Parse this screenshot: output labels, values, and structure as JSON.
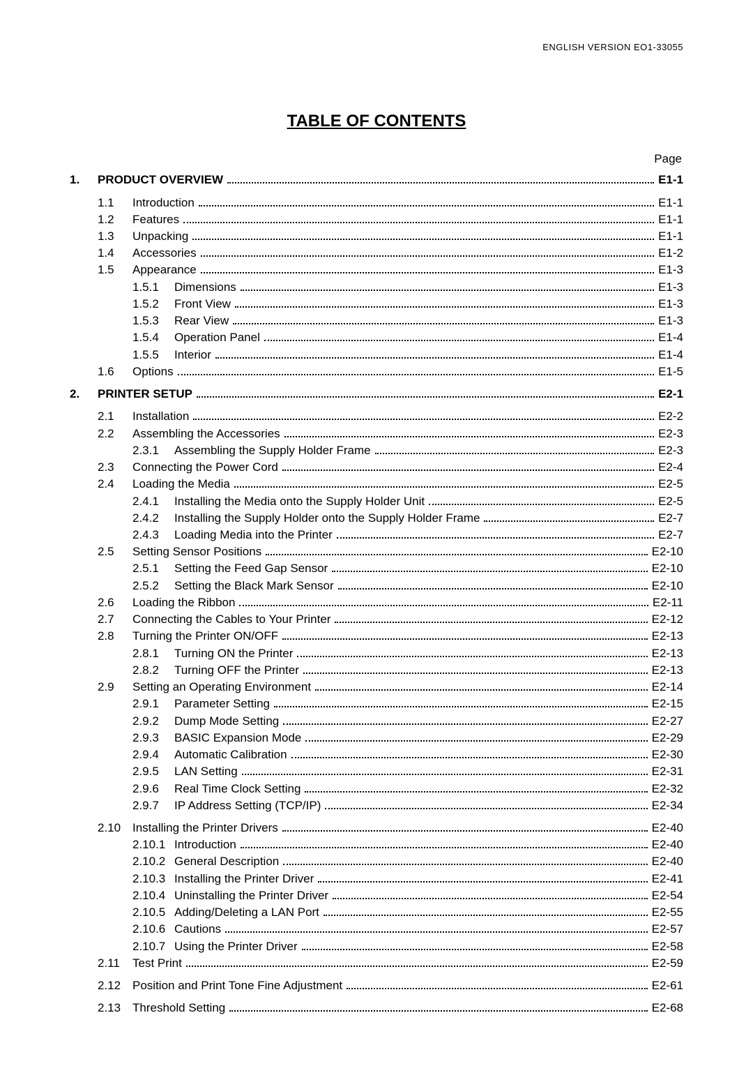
{
  "doc_id": "ENGLISH VERSION EO1-33055",
  "title": "TABLE OF CONTENTS",
  "page_label": "Page",
  "toc": [
    {
      "level": "chapter",
      "num": "1.",
      "label": "PRODUCT OVERVIEW",
      "page": "E1-1",
      "gap": true
    },
    {
      "level": "section",
      "num": "1.1",
      "label": "Introduction",
      "page": "E1-1",
      "gap": true
    },
    {
      "level": "section",
      "num": "1.2",
      "label": "Features",
      "page": "E1-1"
    },
    {
      "level": "section",
      "num": "1.3",
      "label": "Unpacking",
      "page": "E1-1"
    },
    {
      "level": "section",
      "num": "1.4",
      "label": "Accessories",
      "page": "E1-2"
    },
    {
      "level": "section",
      "num": "1.5",
      "label": "Appearance",
      "page": "E1-3"
    },
    {
      "level": "sub",
      "num": "1.5.1",
      "label": "Dimensions",
      "page": "E1-3"
    },
    {
      "level": "sub",
      "num": "1.5.2",
      "label": "Front View",
      "page": "E1-3"
    },
    {
      "level": "sub",
      "num": "1.5.3",
      "label": "Rear View",
      "page": "E1-3"
    },
    {
      "level": "sub",
      "num": "1.5.4",
      "label": "Operation Panel",
      "page": "E1-4"
    },
    {
      "level": "sub",
      "num": "1.5.5",
      "label": "Interior",
      "page": "E1-4"
    },
    {
      "level": "section",
      "num": "1.6",
      "label": "Options",
      "page": "E1-5"
    },
    {
      "level": "chapter",
      "num": "2.",
      "label": "PRINTER SETUP",
      "page": "E2-1",
      "gap": true
    },
    {
      "level": "section",
      "num": "2.1",
      "label": "Installation",
      "page": "E2-2",
      "gap": true
    },
    {
      "level": "section",
      "num": "2.2",
      "label": "Assembling the Accessories",
      "page": "E2-3"
    },
    {
      "level": "sub",
      "num": "2.3.1",
      "label": "Assembling the Supply Holder Frame",
      "page": "E2-3"
    },
    {
      "level": "section",
      "num": "2.3",
      "label": "Connecting the Power Cord",
      "page": "E2-4"
    },
    {
      "level": "section",
      "num": "2.4",
      "label": "Loading the Media",
      "page": "E2-5"
    },
    {
      "level": "sub",
      "num": "2.4.1",
      "label": "Installing the Media onto the Supply Holder Unit",
      "page": "E2-5"
    },
    {
      "level": "sub",
      "num": "2.4.2",
      "label": "Installing the Supply Holder onto the Supply Holder Frame",
      "page": "E2-7"
    },
    {
      "level": "sub",
      "num": "2.4.3",
      "label": "Loading Media into the Printer",
      "page": "E2-7"
    },
    {
      "level": "section",
      "num": "2.5",
      "label": "Setting Sensor Positions",
      "page": "E2-10"
    },
    {
      "level": "sub",
      "num": "2.5.1",
      "label": "Setting the Feed Gap Sensor",
      "page": "E2-10"
    },
    {
      "level": "sub",
      "num": "2.5.2",
      "label": "Setting the Black Mark Sensor",
      "page": "E2-10"
    },
    {
      "level": "section",
      "num": "2.6",
      "label": "Loading the Ribbon",
      "page": "E2-11"
    },
    {
      "level": "section",
      "num": "2.7",
      "label": "Connecting the Cables to Your Printer",
      "page": "E2-12"
    },
    {
      "level": "section",
      "num": "2.8",
      "label": "Turning the Printer ON/OFF",
      "page": "E2-13"
    },
    {
      "level": "sub",
      "num": "2.8.1",
      "label": "Turning ON the Printer",
      "page": "E2-13"
    },
    {
      "level": "sub",
      "num": "2.8.2",
      "label": "Turning OFF the Printer",
      "page": "E2-13"
    },
    {
      "level": "section",
      "num": "2.9",
      "label": "Setting an Operating Environment",
      "page": "E2-14"
    },
    {
      "level": "sub",
      "num": "2.9.1",
      "label": "Parameter Setting",
      "page": "E2-15"
    },
    {
      "level": "sub",
      "num": "2.9.2",
      "label": "Dump Mode Setting",
      "page": "E2-27"
    },
    {
      "level": "sub",
      "num": "2.9.3",
      "label": "BASIC Expansion Mode",
      "page": "E2-29"
    },
    {
      "level": "sub",
      "num": "2.9.4",
      "label": "Automatic Calibration",
      "page": "E2-30"
    },
    {
      "level": "sub",
      "num": "2.9.5",
      "label": "LAN Setting",
      "page": "E2-31"
    },
    {
      "level": "sub",
      "num": "2.9.6",
      "label": "Real Time Clock Setting",
      "page": "E2-32"
    },
    {
      "level": "sub",
      "num": "2.9.7",
      "label": "IP Address Setting (TCP/IP)",
      "page": "E2-34"
    },
    {
      "level": "section",
      "num": "2.10",
      "label": "Installing the Printer Drivers",
      "page": "E2-40",
      "gap": true
    },
    {
      "level": "sub",
      "num": "2.10.1",
      "label": "Introduction",
      "page": "E2-40"
    },
    {
      "level": "sub",
      "num": "2.10.2",
      "label": "General Description",
      "page": "E2-40"
    },
    {
      "level": "sub",
      "num": "2.10.3",
      "label": "Installing the Printer Driver",
      "page": "E2-41"
    },
    {
      "level": "sub",
      "num": "2.10.4",
      "label": "Uninstalling the Printer Driver",
      "page": "E2-54"
    },
    {
      "level": "sub",
      "num": "2.10.5",
      "label": "Adding/Deleting a LAN Port",
      "page": "E2-55"
    },
    {
      "level": "sub",
      "num": "2.10.6",
      "label": "Cautions",
      "page": "E2-57"
    },
    {
      "level": "sub",
      "num": "2.10.7",
      "label": "Using the Printer Driver",
      "page": "E2-58"
    },
    {
      "level": "section",
      "num": "2.11",
      "label": "Test Print",
      "page": "E2-59"
    },
    {
      "level": "section",
      "num": "2.12",
      "label": "Position and Print Tone Fine Adjustment",
      "page": "E2-61",
      "gap": true
    },
    {
      "level": "section",
      "num": "2.13",
      "label": "Threshold Setting",
      "page": "E2-68",
      "gap": true
    }
  ]
}
